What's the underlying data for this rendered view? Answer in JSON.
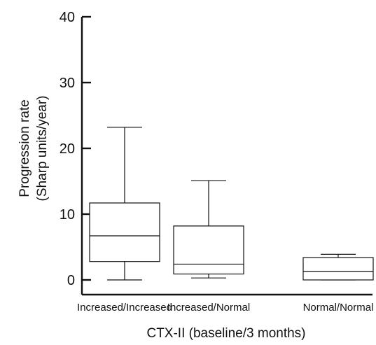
{
  "chart_data": {
    "type": "box",
    "title": "",
    "ylabel_lines": [
      "Progression rate",
      "(Sharp units/year)"
    ],
    "xlabel": "CTX-II (baseline/3 months)",
    "ylim": [
      0,
      40
    ],
    "yticks": [
      0,
      10,
      20,
      30,
      40
    ],
    "categories": [
      "Increased/Increased",
      "Increased/Normal",
      "Normal/Normal"
    ],
    "boxes": [
      {
        "category": "Increased/Increased",
        "min": 0,
        "q1": 2.8,
        "median": 6.7,
        "q3": 11.7,
        "max": 23.2
      },
      {
        "category": "Increased/Normal",
        "min": 0.3,
        "q1": 0.9,
        "median": 2.4,
        "q3": 8.2,
        "max": 15.1
      },
      {
        "category": "Normal/Normal",
        "min": 0,
        "q1": 0,
        "median": 1.3,
        "q3": 3.4,
        "max": 3.9
      }
    ],
    "grid": false,
    "colors": {
      "stroke": "#111111",
      "fill": "#ffffff",
      "text": "#111111"
    }
  }
}
